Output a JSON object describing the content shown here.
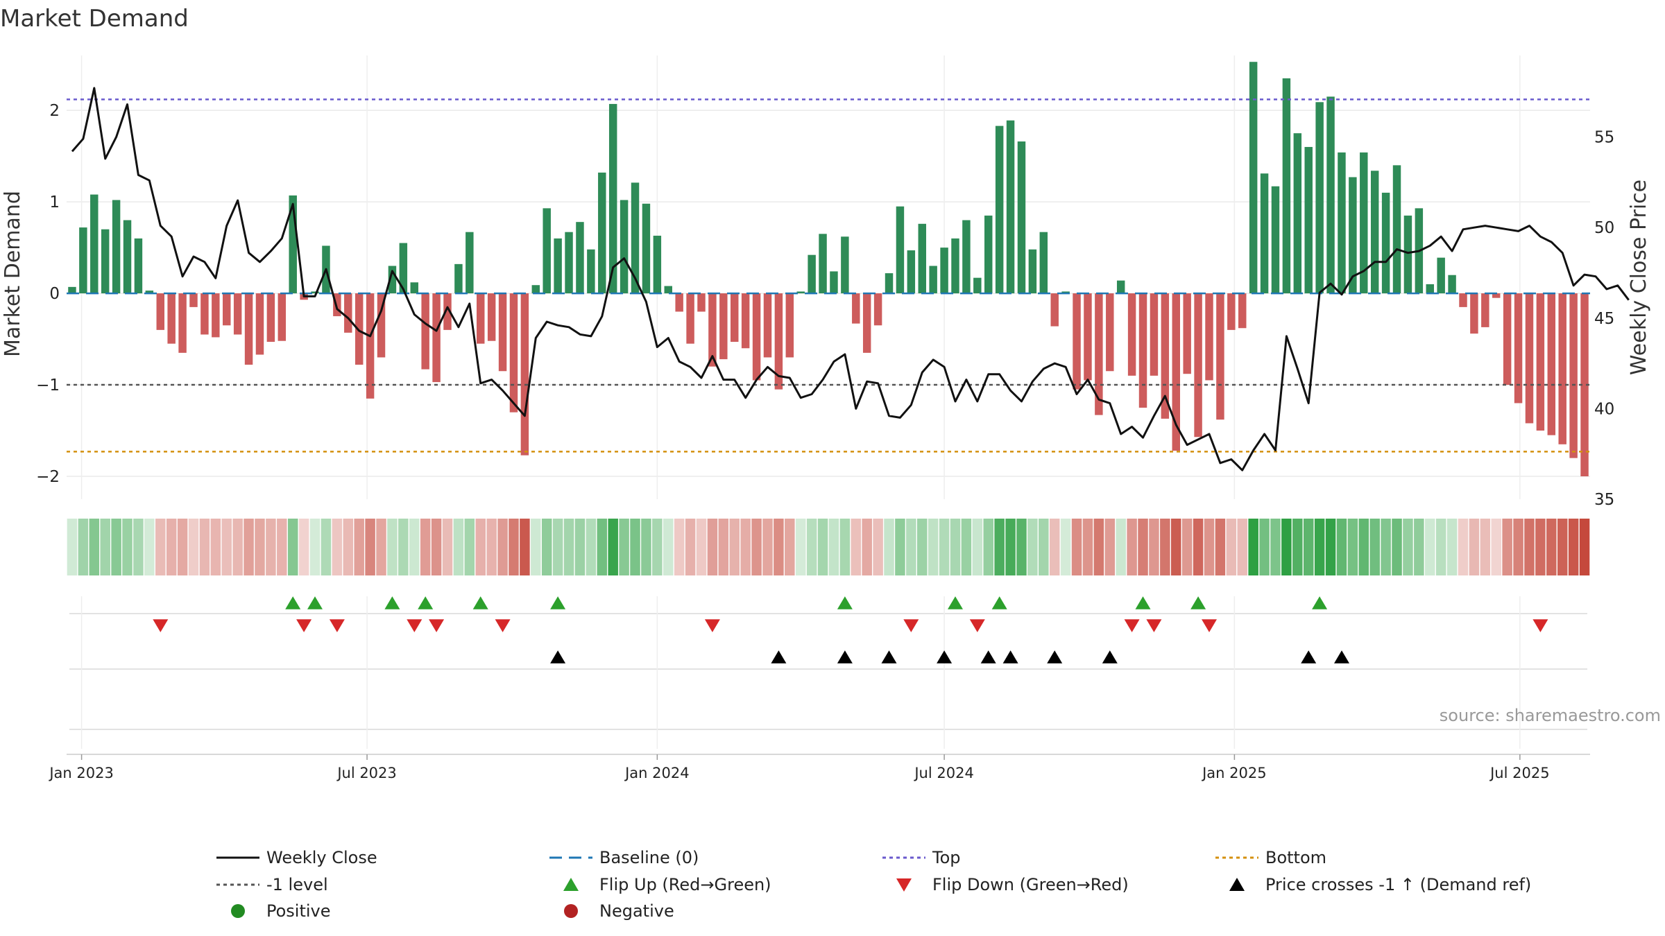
{
  "chart_data": {
    "type": "bar",
    "title": "Market Demand",
    "ylabel": "Market Demand",
    "ylabel_right": "Weekly Close Price",
    "ylim": [
      -2.25,
      2.6
    ],
    "ylim_right": [
      35,
      59.5
    ],
    "yticks": [
      -2,
      -1,
      0,
      1,
      2
    ],
    "yticks_right": [
      35,
      40,
      45,
      50,
      55
    ],
    "x_start": "2022-12-26",
    "week_step": 7,
    "x_ticks": [
      {
        "label": "Jan 2023",
        "date": "2023-01-01"
      },
      {
        "label": "Jul 2023",
        "date": "2023-07-01"
      },
      {
        "label": "Jan 2024",
        "date": "2024-01-01"
      },
      {
        "label": "Jul 2024",
        "date": "2024-07-01"
      },
      {
        "label": "Jan 2025",
        "date": "2025-01-01"
      },
      {
        "label": "Jul 2025",
        "date": "2025-07-01"
      }
    ],
    "demand": [
      0.07,
      0.72,
      1.08,
      0.7,
      1.02,
      0.8,
      0.6,
      0.03,
      -0.4,
      -0.55,
      -0.65,
      -0.15,
      -0.45,
      -0.48,
      -0.35,
      -0.45,
      -0.78,
      -0.67,
      -0.53,
      -0.52,
      1.07,
      -0.07,
      0.02,
      0.52,
      -0.25,
      -0.43,
      -0.78,
      -1.15,
      -0.7,
      0.3,
      0.55,
      0.12,
      -0.83,
      -0.97,
      -0.4,
      0.32,
      0.67,
      -0.55,
      -0.52,
      -0.85,
      -1.3,
      -1.77,
      0.09,
      0.93,
      0.6,
      0.67,
      0.78,
      0.48,
      1.32,
      2.07,
      1.02,
      1.21,
      0.98,
      0.63,
      0.08,
      -0.2,
      -0.55,
      -0.2,
      -0.8,
      -0.72,
      -0.53,
      -0.6,
      -0.95,
      -0.7,
      -1.05,
      -0.7,
      0.02,
      0.42,
      0.65,
      0.24,
      0.62,
      -0.33,
      -0.65,
      -0.35,
      0.22,
      0.95,
      0.47,
      0.76,
      0.3,
      0.5,
      0.6,
      0.8,
      0.17,
      0.85,
      1.83,
      1.89,
      1.66,
      0.48,
      0.67,
      -0.36,
      0.02,
      -1.05,
      -0.95,
      -1.33,
      -0.85,
      0.14,
      -0.9,
      -1.25,
      -0.9,
      -1.37,
      -1.72,
      -0.88,
      -1.57,
      -0.95,
      -1.38,
      -0.4,
      -0.38,
      2.53,
      1.31,
      1.17,
      2.35,
      1.75,
      1.6,
      2.09,
      2.15,
      1.54,
      1.27,
      1.54,
      1.34,
      1.1,
      1.4,
      0.85,
      0.93,
      0.1,
      0.39,
      0.2,
      -0.15,
      -0.44,
      -0.37,
      -0.05,
      -1.0,
      -1.2,
      -1.42,
      -1.5,
      -1.55,
      -1.65,
      -1.8,
      -2.0
    ],
    "price": [
      54.2,
      54.9,
      57.7,
      53.8,
      55.0,
      56.8,
      52.9,
      52.6,
      50.1,
      49.5,
      47.3,
      48.4,
      48.1,
      47.2,
      50.1,
      51.5,
      48.6,
      48.1,
      48.7,
      49.4,
      51.3,
      46.2,
      46.2,
      47.7,
      45.5,
      45.0,
      44.3,
      44.0,
      45.4,
      47.6,
      46.6,
      45.2,
      44.7,
      44.3,
      45.6,
      44.5,
      45.8,
      41.4,
      41.6,
      41.0,
      40.3,
      39.6,
      43.9,
      44.8,
      44.6,
      44.5,
      44.1,
      44.0,
      45.1,
      47.8,
      48.3,
      47.2,
      45.9,
      43.4,
      43.9,
      42.6,
      42.3,
      41.7,
      42.9,
      41.6,
      41.6,
      40.6,
      41.6,
      42.3,
      41.8,
      41.7,
      40.6,
      40.8,
      41.6,
      42.6,
      43.0,
      40.0,
      41.5,
      41.4,
      39.6,
      39.5,
      40.2,
      42.0,
      42.7,
      42.3,
      40.4,
      41.6,
      40.4,
      41.9,
      41.9,
      41.0,
      40.4,
      41.5,
      42.2,
      42.5,
      42.3,
      40.8,
      41.6,
      40.5,
      40.3,
      38.6,
      39.0,
      38.4,
      39.6,
      40.7,
      39.1,
      38.0,
      38.3,
      38.6,
      37.0,
      37.2,
      36.6,
      37.7,
      38.6,
      37.7,
      44.0,
      42.2,
      40.3,
      46.4,
      46.9,
      46.3,
      47.3,
      47.6,
      48.1,
      48.1,
      48.8,
      48.6,
      48.7,
      49.0,
      49.5,
      48.7,
      49.9,
      50.0,
      50.1,
      50.0,
      49.9,
      49.8,
      50.1,
      49.5,
      49.2,
      48.6,
      46.8,
      47.4,
      47.3,
      46.6,
      46.8,
      46.0
    ],
    "levels": {
      "top": 2.12,
      "bottom": -1.73,
      "minus_one": -1,
      "baseline": 0
    },
    "signals": {
      "flip_up": [
        20,
        22,
        29,
        32,
        37,
        44,
        70,
        80,
        84,
        97,
        102,
        113
      ],
      "flip_down": [
        8,
        21,
        24,
        31,
        33,
        39,
        58,
        76,
        82,
        96,
        98,
        103,
        133
      ],
      "price_cross": [
        44,
        64,
        70,
        74,
        79,
        83,
        85,
        89,
        94,
        112,
        115
      ]
    },
    "legend": [
      {
        "key": "weekly_close",
        "label": "Weekly Close"
      },
      {
        "key": "baseline",
        "label": "Baseline (0)"
      },
      {
        "key": "top",
        "label": "Top"
      },
      {
        "key": "bottom",
        "label": "Bottom"
      },
      {
        "key": "minus_one",
        "label": "-1 level"
      },
      {
        "key": "flip_up",
        "label": "Flip Up (Red→Green)"
      },
      {
        "key": "flip_down",
        "label": "Flip Down (Green→Red)"
      },
      {
        "key": "price_cross",
        "label": "Price crosses -1 ↑ (Demand ref)"
      },
      {
        "key": "positive",
        "label": "Positive"
      },
      {
        "key": "negative",
        "label": "Negative"
      }
    ],
    "source": "source: sharemaestro.com"
  },
  "colors": {
    "positive_bar": "#2e8b57",
    "negative_bar": "#cd5c5c",
    "price_line": "#111111",
    "baseline": "#1f77b4",
    "top": "#6a5acd",
    "bottom": "#d4900f",
    "minus_one": "#555555",
    "flip_up": "#2ca02c",
    "flip_down": "#d62728",
    "price_cross": "#000000",
    "positive_dot": "#228b22",
    "negative_dot": "#b22222"
  }
}
